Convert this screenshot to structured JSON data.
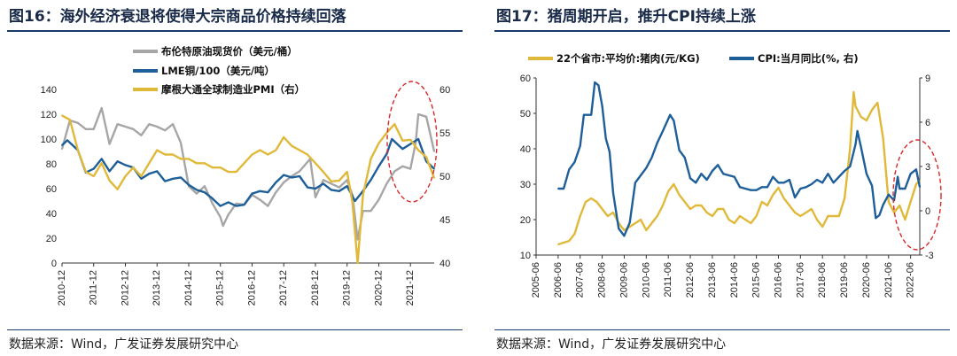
{
  "chart_data": [
    {
      "type": "line",
      "figure_title": "图16：海外经济衰退将使得大宗商品价格持续回落",
      "source": "数据来源：Wind，广发证券发展研究中心",
      "x": [
        "2010-12",
        "2011-12",
        "2012-12",
        "2013-12",
        "2014-12",
        "2015-12",
        "2016-12",
        "2017-12",
        "2018-12",
        "2019-12",
        "2020-12",
        "2021-12"
      ],
      "xlim": [
        "2010-12",
        "2022-09"
      ],
      "ylim_left": [
        0,
        140
      ],
      "yticks_left": [
        0,
        20,
        40,
        60,
        80,
        100,
        120,
        140
      ],
      "ylim_right": [
        40,
        60
      ],
      "yticks_right": [
        40,
        45,
        50,
        55,
        60
      ],
      "legend_position": "top",
      "series": [
        {
          "name": "布伦特原油现货价（美元/桶）",
          "axis": "left",
          "color": "#a6a6a6",
          "x": [
            "2010-12",
            "2011-03",
            "2011-06",
            "2011-09",
            "2011-12",
            "2012-03",
            "2012-06",
            "2012-09",
            "2012-12",
            "2013-03",
            "2013-06",
            "2013-09",
            "2013-12",
            "2014-03",
            "2014-06",
            "2014-09",
            "2014-12",
            "2015-03",
            "2015-06",
            "2015-09",
            "2015-12",
            "2016-01",
            "2016-03",
            "2016-06",
            "2016-09",
            "2016-12",
            "2017-03",
            "2017-06",
            "2017-09",
            "2017-12",
            "2018-03",
            "2018-06",
            "2018-10",
            "2018-12",
            "2019-03",
            "2019-06",
            "2019-09",
            "2019-12",
            "2020-02",
            "2020-04",
            "2020-06",
            "2020-09",
            "2020-12",
            "2021-03",
            "2021-06",
            "2021-09",
            "2021-12",
            "2022-02",
            "2022-03",
            "2022-06",
            "2022-09"
          ],
          "values": [
            92,
            115,
            113,
            108,
            108,
            125,
            96,
            112,
            110,
            108,
            103,
            112,
            110,
            107,
            112,
            97,
            62,
            56,
            62,
            48,
            37,
            30,
            39,
            48,
            47,
            55,
            51,
            46,
            57,
            65,
            70,
            74,
            84,
            53,
            67,
            64,
            61,
            67,
            55,
            19,
            42,
            42,
            51,
            64,
            74,
            78,
            76,
            97,
            120,
            118,
            90
          ]
        },
        {
          "name": "LME铜/100（美元/吨）",
          "axis": "left",
          "color": "#1f5f99",
          "x": [
            "2010-12",
            "2011-02",
            "2011-06",
            "2011-09",
            "2011-12",
            "2012-03",
            "2012-06",
            "2012-09",
            "2012-12",
            "2013-03",
            "2013-06",
            "2013-09",
            "2013-12",
            "2014-03",
            "2014-06",
            "2014-09",
            "2014-12",
            "2015-03",
            "2015-06",
            "2015-09",
            "2015-12",
            "2016-03",
            "2016-06",
            "2016-09",
            "2016-12",
            "2017-03",
            "2017-06",
            "2017-09",
            "2017-12",
            "2018-03",
            "2018-06",
            "2018-09",
            "2018-12",
            "2019-03",
            "2019-06",
            "2019-09",
            "2019-12",
            "2020-03",
            "2020-06",
            "2020-09",
            "2020-12",
            "2021-03",
            "2021-05",
            "2021-09",
            "2021-12",
            "2022-03",
            "2022-06",
            "2022-09"
          ],
          "values": [
            95,
            99,
            91,
            73,
            76,
            84,
            74,
            82,
            79,
            77,
            68,
            72,
            74,
            66,
            68,
            69,
            63,
            59,
            57,
            52,
            46,
            49,
            46,
            47,
            56,
            58,
            57,
            65,
            71,
            69,
            70,
            61,
            60,
            64,
            59,
            58,
            62,
            50,
            58,
            67,
            78,
            88,
            100,
            92,
            96,
            100,
            82,
            76
          ]
        },
        {
          "name": "摩根大通全球制造业PMI（右）",
          "axis": "right",
          "color": "#e0b93a",
          "x": [
            "2010-12",
            "2011-03",
            "2011-06",
            "2011-09",
            "2011-12",
            "2012-03",
            "2012-06",
            "2012-09",
            "2012-12",
            "2013-03",
            "2013-06",
            "2013-09",
            "2013-12",
            "2014-03",
            "2014-06",
            "2014-09",
            "2014-12",
            "2015-03",
            "2015-06",
            "2015-09",
            "2015-12",
            "2016-03",
            "2016-06",
            "2016-09",
            "2016-12",
            "2017-03",
            "2017-06",
            "2017-09",
            "2017-12",
            "2018-03",
            "2018-06",
            "2018-09",
            "2018-12",
            "2019-03",
            "2019-06",
            "2019-09",
            "2019-12",
            "2020-02",
            "2020-04",
            "2020-06",
            "2020-09",
            "2020-12",
            "2021-03",
            "2021-06",
            "2021-09",
            "2021-12",
            "2022-03",
            "2022-06",
            "2022-09"
          ],
          "values": [
            57,
            56.5,
            53,
            50.5,
            50,
            51.5,
            49.5,
            48.5,
            50,
            51,
            50,
            51.5,
            53,
            52.5,
            52.5,
            52,
            52,
            51.5,
            51.5,
            51,
            51,
            50.5,
            50.5,
            51.5,
            52.5,
            53,
            52.5,
            53,
            54.5,
            53.5,
            53,
            52.5,
            51.5,
            50.5,
            49.4,
            49.5,
            50.5,
            47,
            40,
            47.8,
            52,
            53.8,
            55,
            56,
            54.1,
            54.2,
            53,
            52.2,
            49.8
          ]
        }
      ]
    },
    {
      "type": "line",
      "figure_title": "图17：猪周期开启，推升CPI持续上涨",
      "source": "数据来源：Wind，广发证券发展研究中心",
      "x": [
        "2005-06",
        "2006-06",
        "2007-06",
        "2008-06",
        "2009-06",
        "2010-06",
        "2011-06",
        "2012-06",
        "2013-06",
        "2014-06",
        "2015-06",
        "2016-06",
        "2017-06",
        "2018-06",
        "2019-06",
        "2020-06",
        "2021-06",
        "2022-06"
      ],
      "xlim": [
        "2005-06",
        "2022-11"
      ],
      "ylim_left": [
        10,
        60
      ],
      "yticks_left": [
        10,
        20,
        30,
        40,
        50,
        60
      ],
      "ylim_right": [
        -3,
        9
      ],
      "yticks_right": [
        -3,
        0,
        3,
        6,
        9
      ],
      "legend_position": "top",
      "series": [
        {
          "name": "22个省市:平均价:猪肉(元/KG)",
          "axis": "left",
          "color": "#e0b93a",
          "x": [
            "2006-06",
            "2006-12",
            "2007-03",
            "2007-06",
            "2007-09",
            "2007-12",
            "2008-03",
            "2008-06",
            "2008-09",
            "2008-12",
            "2009-03",
            "2009-06",
            "2009-09",
            "2009-12",
            "2010-03",
            "2010-06",
            "2010-09",
            "2010-12",
            "2011-03",
            "2011-06",
            "2011-09",
            "2011-12",
            "2012-03",
            "2012-06",
            "2012-09",
            "2012-12",
            "2013-03",
            "2013-06",
            "2013-09",
            "2013-12",
            "2014-03",
            "2014-06",
            "2014-09",
            "2014-12",
            "2015-03",
            "2015-06",
            "2015-09",
            "2015-12",
            "2016-03",
            "2016-06",
            "2016-09",
            "2016-12",
            "2017-03",
            "2017-06",
            "2017-09",
            "2017-12",
            "2018-03",
            "2018-06",
            "2018-09",
            "2018-12",
            "2019-03",
            "2019-06",
            "2019-09",
            "2019-11",
            "2019-12",
            "2020-03",
            "2020-06",
            "2020-09",
            "2020-12",
            "2021-03",
            "2021-06",
            "2021-09",
            "2021-12",
            "2022-03",
            "2022-06",
            "2022-09",
            "2022-11"
          ],
          "values": [
            13,
            14,
            16,
            21,
            25,
            26,
            25,
            23,
            21,
            22,
            19,
            17,
            18,
            19,
            20,
            17,
            19,
            21,
            24,
            28,
            30,
            27,
            25,
            23,
            24,
            24,
            22,
            21,
            23,
            23,
            20,
            19,
            21,
            20,
            19,
            21,
            25,
            24,
            27,
            29,
            26,
            24,
            22,
            21,
            22,
            23,
            20,
            18,
            21,
            21,
            21,
            26,
            40,
            56,
            52,
            49,
            48,
            51,
            53,
            43,
            25,
            22,
            24,
            20,
            25,
            30,
            31
          ]
        },
        {
          "name": "CPI:当月同比(%, 右)",
          "axis": "right",
          "color": "#1f5f99",
          "x": [
            "2006-06",
            "2006-09",
            "2006-12",
            "2007-03",
            "2007-06",
            "2007-08",
            "2007-12",
            "2008-02",
            "2008-04",
            "2008-06",
            "2008-08",
            "2008-10",
            "2008-12",
            "2009-03",
            "2009-06",
            "2009-09",
            "2009-12",
            "2010-03",
            "2010-06",
            "2010-09",
            "2010-12",
            "2011-03",
            "2011-07",
            "2011-09",
            "2011-12",
            "2012-03",
            "2012-06",
            "2012-09",
            "2012-12",
            "2013-03",
            "2013-06",
            "2013-09",
            "2013-12",
            "2014-03",
            "2014-06",
            "2014-09",
            "2014-12",
            "2015-03",
            "2015-06",
            "2015-09",
            "2015-12",
            "2016-03",
            "2016-06",
            "2016-09",
            "2016-12",
            "2017-03",
            "2017-06",
            "2017-09",
            "2017-12",
            "2018-03",
            "2018-06",
            "2018-09",
            "2018-12",
            "2019-03",
            "2019-06",
            "2019-09",
            "2019-12",
            "2020-01",
            "2020-03",
            "2020-06",
            "2020-09",
            "2020-11",
            "2021-01",
            "2021-03",
            "2021-06",
            "2021-09",
            "2021-11",
            "2021-12",
            "2022-03",
            "2022-06",
            "2022-09",
            "2022-11"
          ],
          "values": [
            1.5,
            1.5,
            2.8,
            3.3,
            4.4,
            6.5,
            6.5,
            8.7,
            8.5,
            7.1,
            4.9,
            4.0,
            1.2,
            -1.2,
            -1.7,
            -0.8,
            1.9,
            2.4,
            2.9,
            3.6,
            4.6,
            5.4,
            6.5,
            6.1,
            4.1,
            3.6,
            2.2,
            1.9,
            2.5,
            2.1,
            2.7,
            3.1,
            2.5,
            2.4,
            2.3,
            1.6,
            1.5,
            1.4,
            1.4,
            1.6,
            1.6,
            2.3,
            1.9,
            1.9,
            2.1,
            0.9,
            1.5,
            1.6,
            1.8,
            2.1,
            1.9,
            2.5,
            1.9,
            2.3,
            2.7,
            3.0,
            4.5,
            5.4,
            4.3,
            2.5,
            1.7,
            -0.5,
            -0.3,
            0.4,
            1.1,
            0.7,
            2.3,
            1.5,
            1.5,
            2.5,
            2.8,
            1.6
          ]
        }
      ]
    }
  ]
}
